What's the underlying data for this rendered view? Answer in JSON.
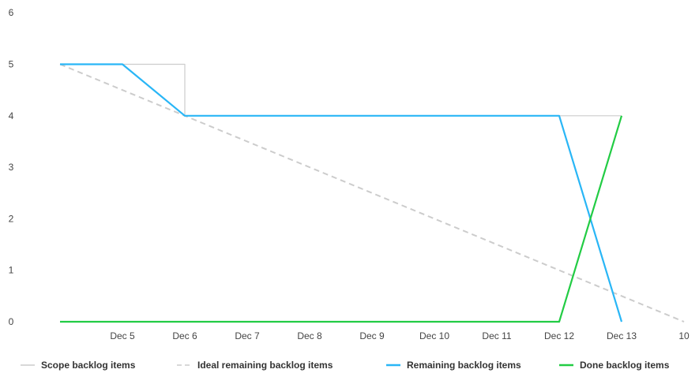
{
  "chart_data": {
    "type": "line",
    "title": "",
    "xlabel": "",
    "ylabel": "",
    "categories": [
      "",
      "Dec 5",
      "Dec 6",
      "Dec 7",
      "Dec 8",
      "Dec 9",
      "Dec 10",
      "Dec 11",
      "Dec 12",
      "Dec 13",
      "10"
    ],
    "ylim": [
      0,
      6
    ],
    "yticks": [
      0,
      1,
      2,
      3,
      4,
      5,
      6
    ],
    "grid": false,
    "legend": "bottom",
    "series": [
      {
        "name": "Scope backlog items",
        "color": "#cccccc",
        "style": "solid",
        "step": true,
        "points": [
          [
            0,
            5
          ],
          [
            2,
            5
          ],
          [
            2,
            4
          ],
          [
            9,
            4
          ]
        ]
      },
      {
        "name": "Ideal remaining backlog items",
        "color": "#cccccc",
        "style": "dashed",
        "step": false,
        "points": [
          [
            0,
            5
          ],
          [
            10,
            0
          ]
        ]
      },
      {
        "name": "Remaining backlog items",
        "color": "#29b6f6",
        "style": "solid",
        "step": false,
        "points": [
          [
            0,
            5
          ],
          [
            1,
            5
          ],
          [
            2,
            4
          ],
          [
            3,
            4
          ],
          [
            4,
            4
          ],
          [
            5,
            4
          ],
          [
            6,
            4
          ],
          [
            7,
            4
          ],
          [
            8,
            4
          ],
          [
            9,
            0
          ]
        ]
      },
      {
        "name": "Done backlog items",
        "color": "#22cc44",
        "style": "solid",
        "step": false,
        "points": [
          [
            0,
            0
          ],
          [
            1,
            0
          ],
          [
            2,
            0
          ],
          [
            3,
            0
          ],
          [
            4,
            0
          ],
          [
            5,
            0
          ],
          [
            6,
            0
          ],
          [
            7,
            0
          ],
          [
            8,
            0
          ],
          [
            9,
            4
          ]
        ]
      }
    ]
  }
}
